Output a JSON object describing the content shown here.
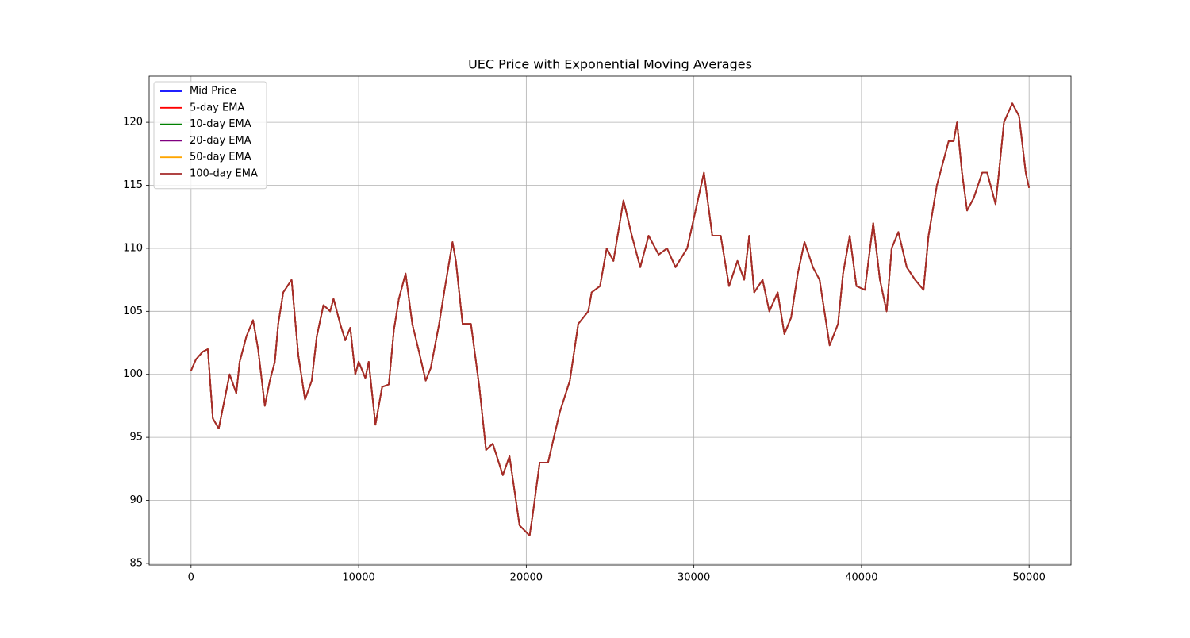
{
  "chart_data": {
    "type": "line",
    "title": "UEC Price with Exponential Moving Averages",
    "x": [
      0,
      300,
      700,
      1000,
      1300,
      1650,
      2000,
      2300,
      2700,
      2900,
      3300,
      3700,
      4000,
      4400,
      4700,
      5000,
      5200,
      5500,
      6000,
      6400,
      6800,
      7200,
      7500,
      7900,
      8300,
      8500,
      8900,
      9200,
      9500,
      9800,
      10000,
      10400,
      10600,
      11000,
      11400,
      11800,
      12100,
      12400,
      12800,
      13200,
      13600,
      14000,
      14300,
      14800,
      15100,
      15600,
      15800,
      16200,
      16700,
      17200,
      17600,
      18000,
      18600,
      19000,
      19600,
      20200,
      20400,
      20800,
      21300,
      21700,
      22000,
      22600,
      23100,
      23700,
      23900,
      24400,
      24800,
      25200,
      25800,
      26300,
      26800,
      27300,
      27900,
      28400,
      28900,
      29600,
      30100,
      30600,
      31100,
      31600,
      32100,
      32600,
      33000,
      33300,
      33600,
      34100,
      34500,
      35000,
      35400,
      35800,
      36200,
      36600,
      37100,
      37500,
      38100,
      38600,
      38900,
      39300,
      39700,
      40200,
      40700,
      41100,
      41500,
      41800,
      42200,
      42700,
      43200,
      43700,
      44000,
      44500,
      44800,
      45200,
      45500,
      45700,
      46000,
      46300,
      46700,
      47200,
      47500,
      48000,
      48200,
      48500,
      49000,
      49400,
      49800,
      50000
    ],
    "series": [
      {
        "name": "Mid Price",
        "color": "#0000ff",
        "values": [
          100.3,
          101.2,
          101.8,
          102,
          96.5,
          95.7,
          98,
          100,
          98.5,
          101,
          103,
          104.3,
          102,
          97.5,
          99.5,
          101,
          104,
          106.5,
          107.5,
          101.5,
          98,
          99.5,
          103,
          105.5,
          105,
          106,
          104,
          102.7,
          103.7,
          100,
          101,
          99.7,
          101,
          96,
          99,
          99.2,
          103.5,
          106,
          108,
          104,
          101.8,
          99.5,
          100.5,
          104,
          106.5,
          110.5,
          109,
          104,
          104,
          99,
          94,
          94.5,
          92,
          93.5,
          88,
          87.2,
          89,
          93,
          93,
          95.3,
          97,
          99.5,
          104,
          105,
          106.5,
          107,
          110,
          109,
          113.8,
          111,
          108.5,
          111,
          109.5,
          110,
          108.5,
          110,
          113,
          116,
          111,
          111,
          107,
          109,
          107.5,
          111,
          106.5,
          107.5,
          105,
          106.5,
          103.2,
          104.5,
          108,
          110.5,
          108.5,
          107.5,
          102.3,
          104,
          108,
          111,
          107,
          106.7,
          112,
          107.5,
          105,
          110,
          111.3,
          108.5,
          107.5,
          106.7,
          111,
          115,
          116.5,
          118.5,
          118.5,
          120,
          116,
          113,
          114,
          116,
          116,
          113.5,
          116,
          120,
          121.5,
          120.5,
          116,
          114.8
        ]
      },
      {
        "name": "5-day EMA",
        "color": "#ff0000",
        "values": [
          100.3,
          101.2,
          101.8,
          102,
          96.5,
          95.7,
          98,
          100,
          98.5,
          101,
          103,
          104.3,
          102,
          97.5,
          99.5,
          101,
          104,
          106.5,
          107.5,
          101.5,
          98,
          99.5,
          103,
          105.5,
          105,
          106,
          104,
          102.7,
          103.7,
          100,
          101,
          99.7,
          101,
          96,
          99,
          99.2,
          103.5,
          106,
          108,
          104,
          101.8,
          99.5,
          100.5,
          104,
          106.5,
          110.5,
          109,
          104,
          104,
          99,
          94,
          94.5,
          92,
          93.5,
          88,
          87.2,
          89,
          93,
          93,
          95.3,
          97,
          99.5,
          104,
          105,
          106.5,
          107,
          110,
          109,
          113.8,
          111,
          108.5,
          111,
          109.5,
          110,
          108.5,
          110,
          113,
          116,
          111,
          111,
          107,
          109,
          107.5,
          111,
          106.5,
          107.5,
          105,
          106.5,
          103.2,
          104.5,
          108,
          110.5,
          108.5,
          107.5,
          102.3,
          104,
          108,
          111,
          107,
          106.7,
          112,
          107.5,
          105,
          110,
          111.3,
          108.5,
          107.5,
          106.7,
          111,
          115,
          116.5,
          118.5,
          118.5,
          120,
          116,
          113,
          114,
          116,
          116,
          113.5,
          116,
          120,
          121.5,
          120.5,
          116,
          114.8
        ]
      },
      {
        "name": "10-day EMA",
        "color": "#008000",
        "values": [
          100.3,
          101.2,
          101.8,
          102,
          96.5,
          95.7,
          98,
          100,
          98.5,
          101,
          103,
          104.3,
          102,
          97.5,
          99.5,
          101,
          104,
          106.5,
          107.5,
          101.5,
          98,
          99.5,
          103,
          105.5,
          105,
          106,
          104,
          102.7,
          103.7,
          100,
          101,
          99.7,
          101,
          96,
          99,
          99.2,
          103.5,
          106,
          108,
          104,
          101.8,
          99.5,
          100.5,
          104,
          106.5,
          110.5,
          109,
          104,
          104,
          99,
          94,
          94.5,
          92,
          93.5,
          88,
          87.2,
          89,
          93,
          93,
          95.3,
          97,
          99.5,
          104,
          105,
          106.5,
          107,
          110,
          109,
          113.8,
          111,
          108.5,
          111,
          109.5,
          110,
          108.5,
          110,
          113,
          116,
          111,
          111,
          107,
          109,
          107.5,
          111,
          106.5,
          107.5,
          105,
          106.5,
          103.2,
          104.5,
          108,
          110.5,
          108.5,
          107.5,
          102.3,
          104,
          108,
          111,
          107,
          106.7,
          112,
          107.5,
          105,
          110,
          111.3,
          108.5,
          107.5,
          106.7,
          111,
          115,
          116.5,
          118.5,
          118.5,
          120,
          116,
          113,
          114,
          116,
          116,
          113.5,
          116,
          120,
          121.5,
          120.5,
          116,
          114.8
        ]
      },
      {
        "name": "20-day EMA",
        "color": "#800080",
        "values": [
          100.3,
          101.2,
          101.8,
          102,
          96.5,
          95.7,
          98,
          100,
          98.5,
          101,
          103,
          104.3,
          102,
          97.5,
          99.5,
          101,
          104,
          106.5,
          107.5,
          101.5,
          98,
          99.5,
          103,
          105.5,
          105,
          106,
          104,
          102.7,
          103.7,
          100,
          101,
          99.7,
          101,
          96,
          99,
          99.2,
          103.5,
          106,
          108,
          104,
          101.8,
          99.5,
          100.5,
          104,
          106.5,
          110.5,
          109,
          104,
          104,
          99,
          94,
          94.5,
          92,
          93.5,
          88,
          87.2,
          89,
          93,
          93,
          95.3,
          97,
          99.5,
          104,
          105,
          106.5,
          107,
          110,
          109,
          113.8,
          111,
          108.5,
          111,
          109.5,
          110,
          108.5,
          110,
          113,
          116,
          111,
          111,
          107,
          109,
          107.5,
          111,
          106.5,
          107.5,
          105,
          106.5,
          103.2,
          104.5,
          108,
          110.5,
          108.5,
          107.5,
          102.3,
          104,
          108,
          111,
          107,
          106.7,
          112,
          107.5,
          105,
          110,
          111.3,
          108.5,
          107.5,
          106.7,
          111,
          115,
          116.5,
          118.5,
          118.5,
          120,
          116,
          113,
          114,
          116,
          116,
          113.5,
          116,
          120,
          121.5,
          120.5,
          116,
          114.8
        ]
      },
      {
        "name": "50-day EMA",
        "color": "#ffa500",
        "values": [
          100.3,
          101.2,
          101.8,
          102,
          96.5,
          95.7,
          98,
          100,
          98.5,
          101,
          103,
          104.3,
          102,
          97.5,
          99.5,
          101,
          104,
          106.5,
          107.5,
          101.5,
          98,
          99.5,
          103,
          105.5,
          105,
          106,
          104,
          102.7,
          103.7,
          100,
          101,
          99.7,
          101,
          96,
          99,
          99.2,
          103.5,
          106,
          108,
          104,
          101.8,
          99.5,
          100.5,
          104,
          106.5,
          110.5,
          109,
          104,
          104,
          99,
          94,
          94.5,
          92,
          93.5,
          88,
          87.2,
          89,
          93,
          93,
          95.3,
          97,
          99.5,
          104,
          105,
          106.5,
          107,
          110,
          109,
          113.8,
          111,
          108.5,
          111,
          109.5,
          110,
          108.5,
          110,
          113,
          116,
          111,
          111,
          107,
          109,
          107.5,
          111,
          106.5,
          107.5,
          105,
          106.5,
          103.2,
          104.5,
          108,
          110.5,
          108.5,
          107.5,
          102.3,
          104,
          108,
          111,
          107,
          106.7,
          112,
          107.5,
          105,
          110,
          111.3,
          108.5,
          107.5,
          106.7,
          111,
          115,
          116.5,
          118.5,
          118.5,
          120,
          116,
          113,
          114,
          116,
          116,
          113.5,
          116,
          120,
          121.5,
          120.5,
          116,
          114.8
        ]
      },
      {
        "name": "100-day EMA",
        "color": "#a52a2a",
        "values": [
          100.3,
          101.2,
          101.8,
          102,
          96.5,
          95.7,
          98,
          100,
          98.5,
          101,
          103,
          104.3,
          102,
          97.5,
          99.5,
          101,
          104,
          106.5,
          107.5,
          101.5,
          98,
          99.5,
          103,
          105.5,
          105,
          106,
          104,
          102.7,
          103.7,
          100,
          101,
          99.7,
          101,
          96,
          99,
          99.2,
          103.5,
          106,
          108,
          104,
          101.8,
          99.5,
          100.5,
          104,
          106.5,
          110.5,
          109,
          104,
          104,
          99,
          94,
          94.5,
          92,
          93.5,
          88,
          87.2,
          89,
          93,
          93,
          95.3,
          97,
          99.5,
          104,
          105,
          106.5,
          107,
          110,
          109,
          113.8,
          111,
          108.5,
          111,
          109.5,
          110,
          108.5,
          110,
          113,
          116,
          111,
          111,
          107,
          109,
          107.5,
          111,
          106.5,
          107.5,
          105,
          106.5,
          103.2,
          104.5,
          108,
          110.5,
          108.5,
          107.5,
          102.3,
          104,
          108,
          111,
          107,
          106.7,
          112,
          107.5,
          105,
          110,
          111.3,
          108.5,
          107.5,
          106.7,
          111,
          115,
          116.5,
          118.5,
          118.5,
          120,
          116,
          113,
          114,
          116,
          116,
          113.5,
          116,
          120,
          121.5,
          120.5,
          116,
          114.8
        ]
      }
    ],
    "xlim": [
      -2500,
      52500
    ],
    "xticks": [
      0,
      10000,
      20000,
      30000,
      40000,
      50000
    ],
    "ylim": [
      84.87,
      123.66
    ],
    "yticks": [
      85,
      90,
      95,
      100,
      105,
      110,
      115,
      120
    ],
    "grid": true,
    "legend": "upper left"
  }
}
